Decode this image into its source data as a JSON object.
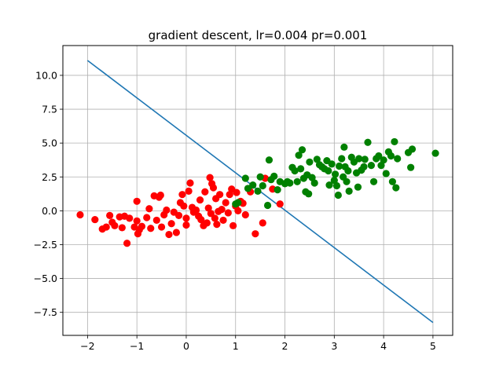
{
  "chart_data": {
    "type": "scatter",
    "title": "gradient descent, lr=0.004 pr=0.001",
    "xlabel": "",
    "ylabel": "",
    "xlim": [
      -2.5,
      5.4
    ],
    "ylim": [
      -9.2,
      12.2
    ],
    "xticks": [
      -2,
      -1,
      0,
      1,
      2,
      3,
      4,
      5
    ],
    "xtick_labels": [
      "−2",
      "−1",
      "0",
      "1",
      "2",
      "3",
      "4",
      "5"
    ],
    "yticks": [
      -7.5,
      -5.0,
      -2.5,
      0.0,
      2.5,
      5.0,
      7.5,
      10.0
    ],
    "ytick_labels": [
      "−7.5",
      "−5.0",
      "−2.5",
      "0.0",
      "2.5",
      "5.0",
      "7.5",
      "10.0"
    ],
    "grid": true,
    "colors": {
      "class_0": "#ff0000",
      "class_1": "#008000",
      "line": "#1f77b4",
      "grid": "#b0b0b0"
    },
    "series": [
      {
        "kind": "scatter",
        "color": "#ff0000",
        "points": [
          [
            -2.15,
            -0.3
          ],
          [
            -1.85,
            -0.65
          ],
          [
            -1.7,
            -1.35
          ],
          [
            -1.62,
            -1.2
          ],
          [
            -1.55,
            -0.35
          ],
          [
            -1.5,
            -0.85
          ],
          [
            -1.45,
            -1.1
          ],
          [
            -1.35,
            -0.45
          ],
          [
            -1.3,
            -1.25
          ],
          [
            -1.25,
            -0.4
          ],
          [
            -1.2,
            -2.4
          ],
          [
            -1.15,
            -0.55
          ],
          [
            -1.05,
            -1.2
          ],
          [
            -1.0,
            0.7
          ],
          [
            -1.0,
            -0.75
          ],
          [
            -0.98,
            -1.7
          ],
          [
            -0.95,
            -1.4
          ],
          [
            -0.9,
            -1.15
          ],
          [
            -0.8,
            -0.5
          ],
          [
            -0.75,
            0.15
          ],
          [
            -0.72,
            -1.3
          ],
          [
            -0.65,
            1.1
          ],
          [
            -0.6,
            -0.7
          ],
          [
            -0.55,
            1.0
          ],
          [
            -0.52,
            1.15
          ],
          [
            -0.5,
            -1.2
          ],
          [
            -0.45,
            -0.3
          ],
          [
            -0.4,
            0.05
          ],
          [
            -0.35,
            -1.75
          ],
          [
            -0.3,
            -0.95
          ],
          [
            -0.25,
            -0.1
          ],
          [
            -0.2,
            -1.6
          ],
          [
            -0.15,
            -0.35
          ],
          [
            -0.12,
            0.6
          ],
          [
            -0.08,
            1.2
          ],
          [
            -0.05,
            0.35
          ],
          [
            0.0,
            -1.05
          ],
          [
            0.0,
            -0.55
          ],
          [
            0.05,
            1.45
          ],
          [
            0.08,
            2.05
          ],
          [
            0.12,
            0.25
          ],
          [
            0.15,
            -0.1
          ],
          [
            0.2,
            0.05
          ],
          [
            0.25,
            -0.4
          ],
          [
            0.28,
            0.8
          ],
          [
            0.3,
            -0.65
          ],
          [
            0.35,
            -1.1
          ],
          [
            0.38,
            1.4
          ],
          [
            0.42,
            -0.9
          ],
          [
            0.45,
            0.2
          ],
          [
            0.48,
            2.45
          ],
          [
            0.5,
            -0.2
          ],
          [
            0.52,
            2.0
          ],
          [
            0.55,
            1.7
          ],
          [
            0.58,
            -0.55
          ],
          [
            0.6,
            0.9
          ],
          [
            0.62,
            -1.0
          ],
          [
            0.65,
            -0.05
          ],
          [
            0.68,
            1.2
          ],
          [
            0.72,
            0.1
          ],
          [
            0.75,
            -0.7
          ],
          [
            0.8,
            0.6
          ],
          [
            0.85,
            -0.15
          ],
          [
            0.88,
            1.2
          ],
          [
            0.92,
            1.6
          ],
          [
            0.95,
            -1.1
          ],
          [
            1.0,
            0.35
          ],
          [
            1.02,
            1.35
          ],
          [
            1.05,
            0.0
          ],
          [
            1.1,
            0.7
          ],
          [
            1.15,
            0.55
          ],
          [
            1.2,
            -0.3
          ],
          [
            1.3,
            1.4
          ],
          [
            1.4,
            -1.7
          ],
          [
            1.55,
            -0.9
          ],
          [
            1.6,
            2.4
          ],
          [
            1.75,
            1.6
          ],
          [
            1.9,
            0.5
          ]
        ]
      },
      {
        "kind": "scatter",
        "color": "#008000",
        "points": [
          [
            1.0,
            0.5
          ],
          [
            1.05,
            0.6
          ],
          [
            1.2,
            2.4
          ],
          [
            1.25,
            1.65
          ],
          [
            1.35,
            1.9
          ],
          [
            1.45,
            1.45
          ],
          [
            1.5,
            2.5
          ],
          [
            1.55,
            1.85
          ],
          [
            1.65,
            0.4
          ],
          [
            1.68,
            3.75
          ],
          [
            1.72,
            2.3
          ],
          [
            1.78,
            2.55
          ],
          [
            1.85,
            1.55
          ],
          [
            1.9,
            2.15
          ],
          [
            2.0,
            2.0
          ],
          [
            2.05,
            2.15
          ],
          [
            2.1,
            2.05
          ],
          [
            2.15,
            3.2
          ],
          [
            2.2,
            2.95
          ],
          [
            2.25,
            2.15
          ],
          [
            2.28,
            4.1
          ],
          [
            2.32,
            3.1
          ],
          [
            2.35,
            4.5
          ],
          [
            2.38,
            2.4
          ],
          [
            2.42,
            1.4
          ],
          [
            2.45,
            2.65
          ],
          [
            2.48,
            1.25
          ],
          [
            2.5,
            3.6
          ],
          [
            2.55,
            2.45
          ],
          [
            2.6,
            2.05
          ],
          [
            2.65,
            3.8
          ],
          [
            2.7,
            3.4
          ],
          [
            2.75,
            3.25
          ],
          [
            2.8,
            3.1
          ],
          [
            2.85,
            3.7
          ],
          [
            2.88,
            2.95
          ],
          [
            2.9,
            1.9
          ],
          [
            2.95,
            3.45
          ],
          [
            3.0,
            2.25
          ],
          [
            3.02,
            2.7
          ],
          [
            3.05,
            1.85
          ],
          [
            3.08,
            1.15
          ],
          [
            3.1,
            3.3
          ],
          [
            3.15,
            3.85
          ],
          [
            3.18,
            2.5
          ],
          [
            3.2,
            4.7
          ],
          [
            3.22,
            3.25
          ],
          [
            3.25,
            2.15
          ],
          [
            3.28,
            2.95
          ],
          [
            3.3,
            1.45
          ],
          [
            3.35,
            3.95
          ],
          [
            3.4,
            3.6
          ],
          [
            3.45,
            2.8
          ],
          [
            3.48,
            1.75
          ],
          [
            3.5,
            3.85
          ],
          [
            3.55,
            3.0
          ],
          [
            3.6,
            3.25
          ],
          [
            3.62,
            3.8
          ],
          [
            3.68,
            5.05
          ],
          [
            3.75,
            3.35
          ],
          [
            3.8,
            2.15
          ],
          [
            3.85,
            3.85
          ],
          [
            3.9,
            4.05
          ],
          [
            3.95,
            3.35
          ],
          [
            4.0,
            3.75
          ],
          [
            4.05,
            2.75
          ],
          [
            4.1,
            4.35
          ],
          [
            4.15,
            4.05
          ],
          [
            4.18,
            2.15
          ],
          [
            4.22,
            5.1
          ],
          [
            4.25,
            1.7
          ],
          [
            4.28,
            3.85
          ],
          [
            4.5,
            4.3
          ],
          [
            4.55,
            3.2
          ],
          [
            4.58,
            4.55
          ],
          [
            5.05,
            4.25
          ]
        ]
      },
      {
        "kind": "line",
        "color": "#1f77b4",
        "points": [
          [
            -2.0,
            11.1
          ],
          [
            5.0,
            -8.25
          ]
        ]
      }
    ]
  }
}
